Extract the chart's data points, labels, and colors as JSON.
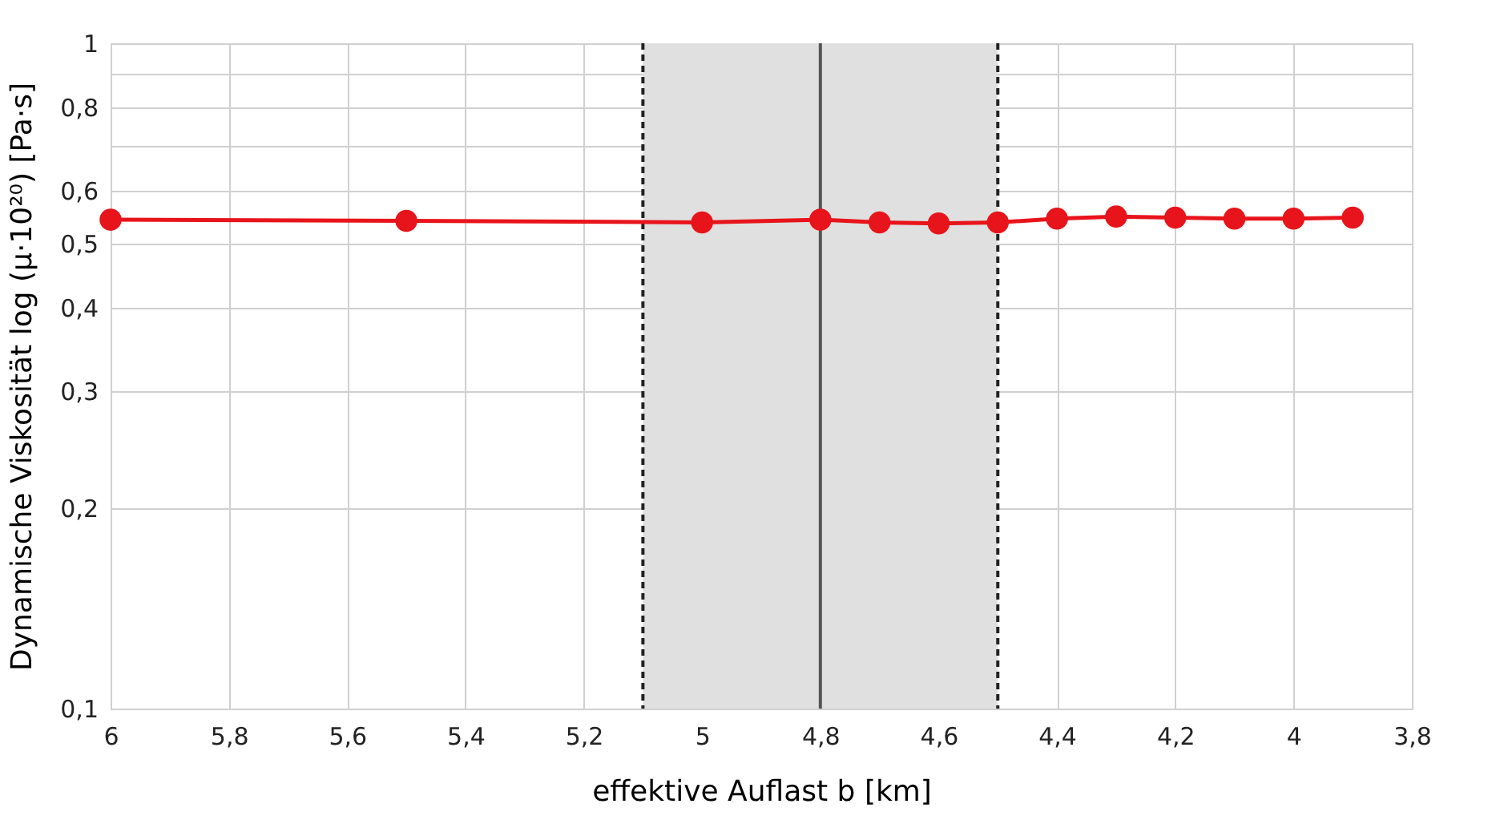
{
  "chart_data": {
    "type": "line",
    "xlabel": "effektive Auflast b [km]",
    "ylabel": "Dynamische Viskosität log (µ·10²⁰)  [Pa·s]",
    "x": [
      6,
      5.5,
      5,
      4.8,
      4.7,
      4.6,
      4.5,
      4.4,
      4.3,
      4.2,
      4.1,
      4,
      3.9
    ],
    "series": [
      {
        "color": "#e8141b",
        "values": [
          0.543,
          0.541,
          0.538,
          0.543,
          0.538,
          0.536,
          0.538,
          0.545,
          0.549,
          0.547,
          0.545,
          0.545,
          0.547
        ]
      }
    ],
    "xlim": [
      6,
      3.8
    ],
    "xticks": [
      {
        "value": 6,
        "label": "6"
      },
      {
        "value": 5.8,
        "label": "5,8"
      },
      {
        "value": 5.6,
        "label": "5,6"
      },
      {
        "value": 5.4,
        "label": "5,4"
      },
      {
        "value": 5.2,
        "label": "5,2"
      },
      {
        "value": 5,
        "label": "5"
      },
      {
        "value": 4.8,
        "label": "4,8"
      },
      {
        "value": 4.6,
        "label": "4,6"
      },
      {
        "value": 4.4,
        "label": "4,4"
      },
      {
        "value": 4.2,
        "label": "4,2"
      },
      {
        "value": 4,
        "label": "4"
      },
      {
        "value": 3.8,
        "label": "3,8"
      }
    ],
    "ylim": [
      0.1,
      1
    ],
    "yticks": [
      {
        "value": 0.1,
        "label": "0,1"
      },
      {
        "value": 0.2,
        "label": "0,2"
      },
      {
        "value": 0.3,
        "label": "0,3"
      },
      {
        "value": 0.4,
        "label": "0,4"
      },
      {
        "value": 0.5,
        "label": "0,5"
      },
      {
        "value": 0.6,
        "label": "0,6"
      },
      {
        "value": 0.7,
        "label": null
      },
      {
        "value": 0.8,
        "label": "0,8"
      },
      {
        "value": 0.9,
        "label": null
      },
      {
        "value": 1,
        "label": "1"
      }
    ],
    "log": "y",
    "grid": true,
    "marker": "circle",
    "line_style": "solid",
    "bands": [
      {
        "axis": "x",
        "from": 5.1,
        "to": 4.5,
        "color": "#e0e0e0"
      }
    ],
    "ref_lines": [
      {
        "axis": "x",
        "value": 5.1,
        "line_style": "dashed",
        "color": "#222222"
      },
      {
        "axis": "x",
        "value": 4.5,
        "line_style": "dashed",
        "color": "#222222"
      },
      {
        "axis": "x",
        "value": 4.8,
        "line_style": "solid",
        "color": "#555555"
      }
    ]
  }
}
